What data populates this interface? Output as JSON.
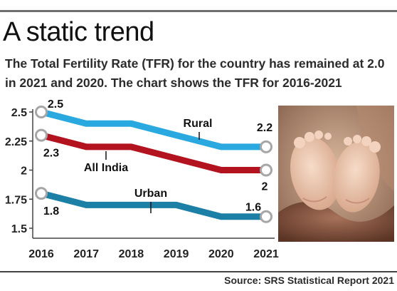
{
  "header": {
    "title": "A static trend",
    "subtitle": "The Total Fertility Rate (TFR) for the country has remained at 2.0 in 2021 and 2020. The chart shows the TFR for 2016-2021"
  },
  "source": "Source: SRS Statistical Report 2021",
  "chart_data": {
    "type": "line",
    "title": "",
    "xlabel": "",
    "ylabel": "",
    "x": [
      "2016",
      "2017",
      "2018",
      "2019",
      "2020",
      "2021"
    ],
    "y_ticks": [
      "2.5",
      "2.25",
      "2",
      "1.75",
      "1.5"
    ],
    "y_tick_values": [
      2.5,
      2.25,
      2.0,
      1.75,
      1.5
    ],
    "ylim": [
      1.5,
      2.5
    ],
    "grid": false,
    "series": [
      {
        "name": "Rural",
        "color": "#29a9e0",
        "values": [
          2.5,
          2.4,
          2.4,
          2.3,
          2.2,
          2.2
        ],
        "start_label": "2.5",
        "end_label": "2.2"
      },
      {
        "name": "All India",
        "color": "#b3121f",
        "values": [
          2.3,
          2.2,
          2.2,
          2.1,
          2.0,
          2.0
        ],
        "start_label": "2.3",
        "end_label": "2"
      },
      {
        "name": "Urban",
        "color": "#1b7fa6",
        "values": [
          1.8,
          1.7,
          1.7,
          1.7,
          1.6,
          1.6
        ],
        "start_label": "1.8",
        "end_label": "1.6"
      }
    ]
  },
  "colors": {
    "marker_fill": "#ffffff",
    "marker_stroke": "#a6a6a6",
    "axis": "#444444"
  },
  "photo": {
    "icon": "baby-feet-photo"
  }
}
